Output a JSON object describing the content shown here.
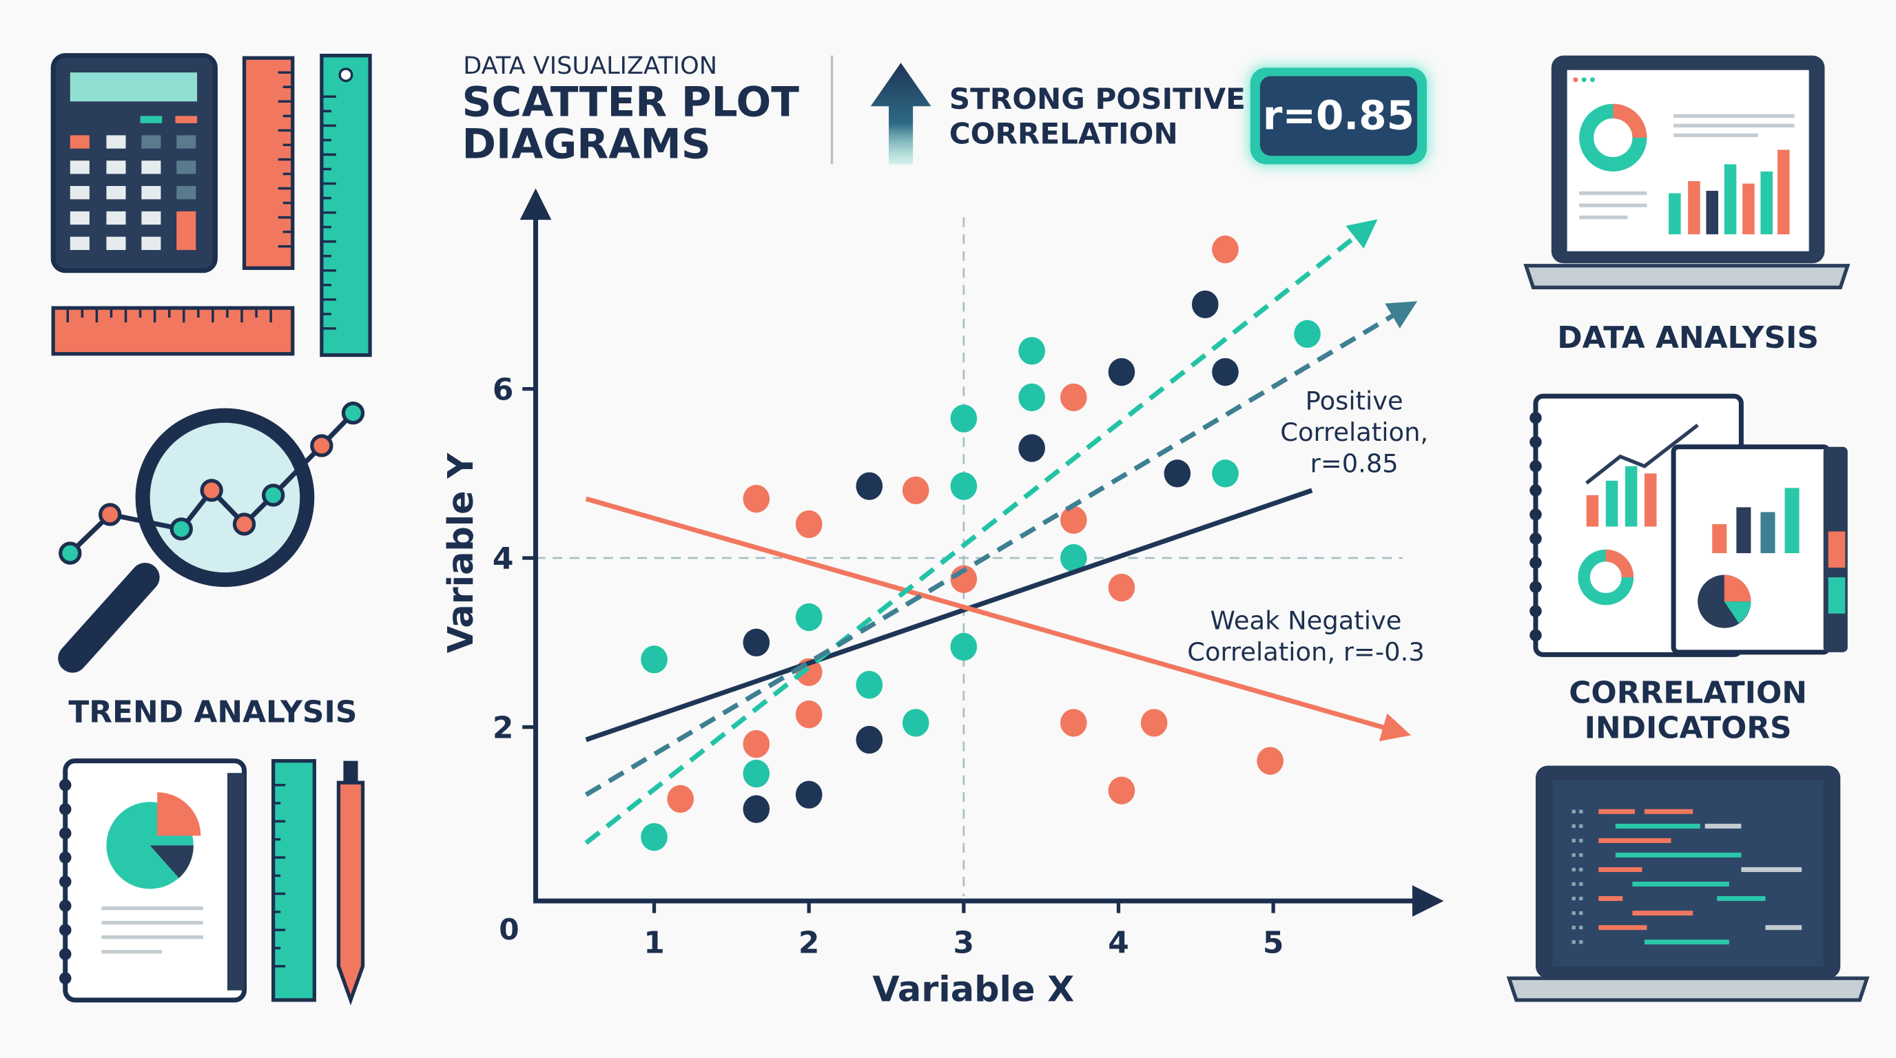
{
  "header": {
    "kicker": "DATA VISUALIZATION",
    "title_line1": "SCATTER PLOT",
    "title_line2": "DIAGRAMS",
    "correlation_line1": "STRONG POSITIVE",
    "correlation_line2": "CORRELATION",
    "r_badge": "r=0.85"
  },
  "side_labels": {
    "trend": "TREND ANALYSIS",
    "data": "DATA ANALYSIS",
    "corr_line1": "CORRELATION",
    "corr_line2": "INDICATORS"
  },
  "colors": {
    "navy": "#1f3556",
    "teal": "#22c3a6",
    "orange": "#f2775f",
    "slate": "#3e7f92"
  },
  "chart_data": {
    "type": "scatter",
    "xlabel": "Variable X",
    "ylabel": "Variable Y",
    "origin_label": "0",
    "x_ticks": [
      "1",
      "2",
      "3",
      "4",
      "5"
    ],
    "y_ticks": [
      "2",
      "4",
      "6"
    ],
    "xlim": [
      0,
      6.1
    ],
    "ylim": [
      0,
      8.2
    ],
    "grid": "dashed reference lines at x=3 and y=4",
    "annotations": {
      "positive": [
        "Positive",
        "Correlation,",
        "r=0.85"
      ],
      "negative": [
        "Weak Negative",
        "Correlation, r=-0.3"
      ]
    },
    "series": [
      {
        "name": "teal",
        "color": "#22c3a6",
        "points": [
          [
            1,
            2.8
          ],
          [
            1,
            0.7
          ],
          [
            1.66,
            1.45
          ],
          [
            2,
            3.3
          ],
          [
            2.39,
            2.5
          ],
          [
            2.69,
            2.05
          ],
          [
            3,
            5.65
          ],
          [
            3,
            4.85
          ],
          [
            3,
            2.95
          ],
          [
            3.44,
            6.45
          ],
          [
            3.44,
            5.9
          ],
          [
            3.71,
            4.0
          ],
          [
            4.69,
            5.0
          ],
          [
            5.22,
            6.65
          ]
        ]
      },
      {
        "name": "navy",
        "color": "#1f3556",
        "points": [
          [
            1.66,
            3.0
          ],
          [
            1.66,
            1.03
          ],
          [
            2,
            1.2
          ],
          [
            2.39,
            4.85
          ],
          [
            2.39,
            1.85
          ],
          [
            3.44,
            5.3
          ],
          [
            4.02,
            6.2
          ],
          [
            4.38,
            5.0
          ],
          [
            4.56,
            7.0
          ],
          [
            4.69,
            6.2
          ]
        ]
      },
      {
        "name": "orange",
        "color": "#f2775f",
        "points": [
          [
            1.17,
            1.15
          ],
          [
            1.66,
            4.7
          ],
          [
            1.66,
            1.8
          ],
          [
            2,
            4.4
          ],
          [
            2,
            2.65
          ],
          [
            2,
            2.15
          ],
          [
            2.69,
            4.8
          ],
          [
            3,
            3.75
          ],
          [
            3.71,
            5.9
          ],
          [
            3.71,
            4.45
          ],
          [
            3.71,
            2.05
          ],
          [
            4.02,
            3.65
          ],
          [
            4.02,
            1.25
          ],
          [
            4.23,
            2.05
          ],
          [
            4.69,
            7.65
          ],
          [
            4.98,
            1.6
          ]
        ]
      }
    ],
    "trend_lines": [
      {
        "name": "positive-fit",
        "color": "#1f3556",
        "style": "solid",
        "from": [
          0.56,
          1.85
        ],
        "to": [
          5.25,
          4.8
        ],
        "arrow": false
      },
      {
        "name": "weak-negative-fit",
        "color": "#f2775f",
        "style": "solid",
        "from": [
          0.56,
          4.7
        ],
        "to": [
          5.8,
          1.95
        ],
        "arrow": true
      },
      {
        "name": "strong-positive-trend",
        "color": "#22c3a6",
        "style": "dashed",
        "from": [
          0.56,
          0.63
        ],
        "to": [
          5.6,
          7.9
        ],
        "arrow": true
      },
      {
        "name": "positive-trend-2",
        "color": "#3e7f92",
        "style": "dashed",
        "from": [
          0.56,
          1.2
        ],
        "to": [
          5.85,
          6.95
        ],
        "arrow": true
      }
    ]
  }
}
